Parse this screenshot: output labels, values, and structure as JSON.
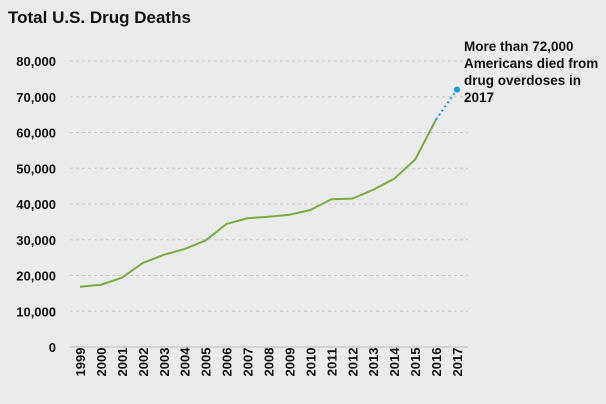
{
  "chart_data": {
    "type": "line",
    "title": "Total U.S. Drug Deaths",
    "xlabel": "",
    "ylabel": "",
    "categories": [
      "1999",
      "2000",
      "2001",
      "2002",
      "2003",
      "2004",
      "2005",
      "2006",
      "2007",
      "2008",
      "2009",
      "2010",
      "2011",
      "2012",
      "2013",
      "2014",
      "2015",
      "2016",
      "2017"
    ],
    "series": [
      {
        "values": [
          16849,
          17415,
          19394,
          23518,
          25785,
          27424,
          29813,
          34425,
          36010,
          36450,
          37004,
          38329,
          41340,
          41502,
          43982,
          47055,
          52404,
          63632,
          null
        ],
        "color": "#7aab45",
        "style": "solid"
      },
      {
        "values": [
          null,
          null,
          null,
          null,
          null,
          null,
          null,
          null,
          null,
          null,
          null,
          null,
          null,
          null,
          null,
          null,
          null,
          63632,
          72000
        ],
        "color": "#1a9ad6",
        "style": "dotted"
      }
    ],
    "ylim": [
      0,
      80000
    ],
    "yticks": [
      "0",
      "10,000",
      "20,000",
      "30,000",
      "40,000",
      "50,000",
      "60,000",
      "70,000",
      "80,000"
    ],
    "grid": true,
    "annotation": "More than 72,000 Americans died from drug overdoses in 2017"
  }
}
